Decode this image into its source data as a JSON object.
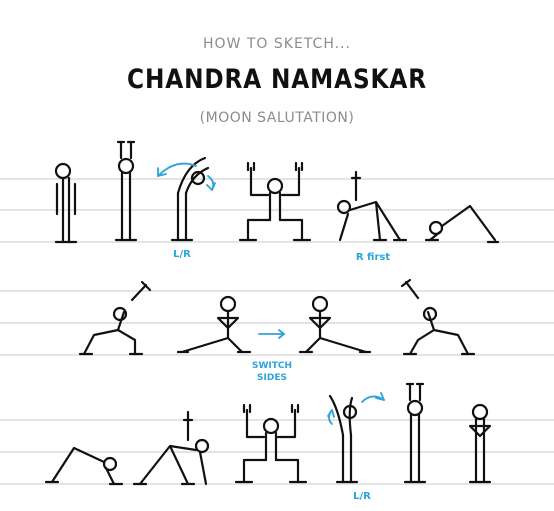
{
  "header": {
    "kicker": "HOW TO SKETCH...",
    "title": "CHANDRA NAMASKAR",
    "subtitle": "(MOON SALUTATION)"
  },
  "annotations": {
    "side_bend_1": "L/R",
    "lizard_note": "R first",
    "switch_line1": "SWITCH",
    "switch_line2": "SIDES",
    "side_bend_2": "L/R"
  },
  "colors": {
    "ink": "#111111",
    "accent": "#2ea3d9",
    "rule_lines": "#c9c9c9",
    "muted_text": "#8c8c8c"
  }
}
